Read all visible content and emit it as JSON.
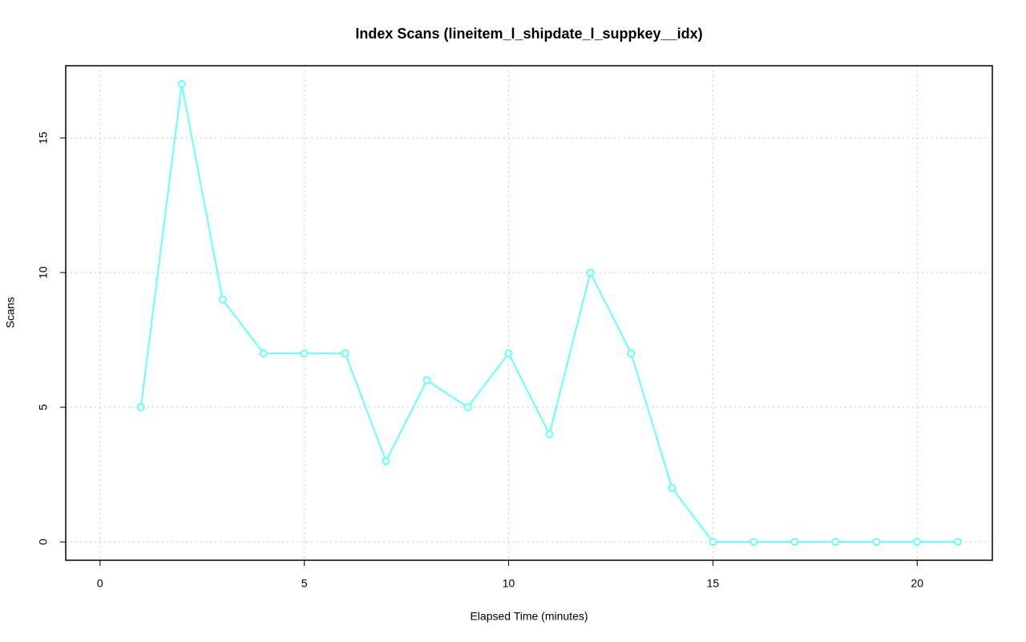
{
  "chart_data": {
    "type": "line",
    "title": "Index Scans (lineitem_l_shipdate_l_suppkey__idx)",
    "x_label": "Elapsed Time (minutes)",
    "y_label": "Scans",
    "x": [
      1,
      2,
      3,
      4,
      5,
      6,
      7,
      8,
      9,
      10,
      11,
      12,
      13,
      14,
      15,
      16,
      17,
      18,
      19,
      20,
      21
    ],
    "series": [
      {
        "name": "Scans",
        "color": "#66ffff",
        "values": [
          5,
          17,
          9,
          7,
          7,
          7,
          3,
          6,
          5,
          7,
          4,
          10,
          7,
          2,
          0,
          0,
          0,
          0,
          0,
          0,
          0
        ]
      }
    ],
    "xlim": [
      -0.84,
      21.84
    ],
    "xticks": [
      0,
      5,
      10,
      15,
      20
    ],
    "ylim": [
      -0.68,
      17.68
    ],
    "yticks": [
      0,
      5,
      10,
      15
    ],
    "grid": true
  }
}
